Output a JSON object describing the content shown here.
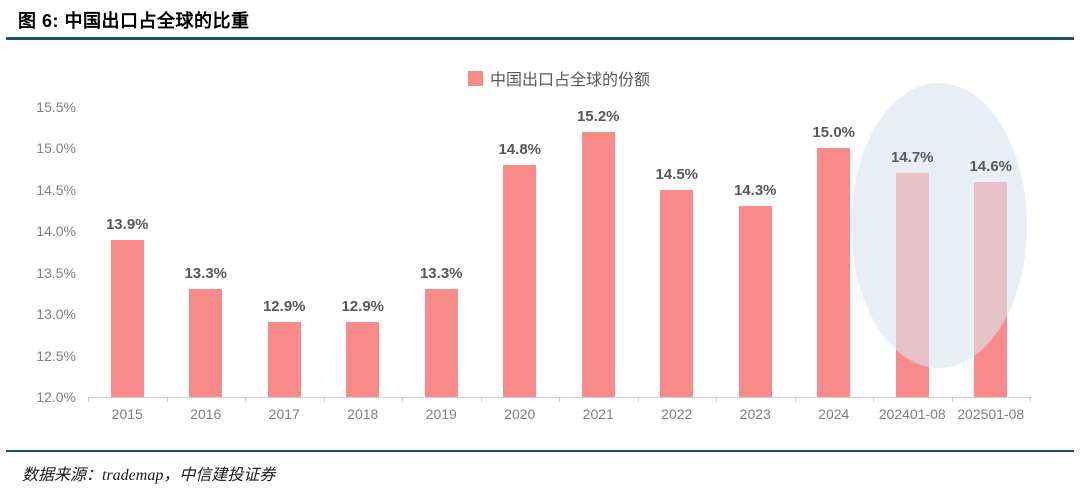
{
  "header": {
    "title": "图 6: 中国出口占全球的比重"
  },
  "footer": {
    "source": "数据来源：trademap，中信建投证券"
  },
  "chart_data": {
    "type": "bar",
    "title": "",
    "legend": [
      "中国出口占全球的份额"
    ],
    "legend_position": "top-center",
    "categories": [
      "2015",
      "2016",
      "2017",
      "2018",
      "2019",
      "2020",
      "2021",
      "2022",
      "2023",
      "2024",
      "202401-08",
      "202501-08"
    ],
    "values": [
      13.9,
      13.3,
      12.9,
      12.9,
      13.3,
      14.8,
      15.2,
      14.5,
      14.3,
      15.0,
      14.7,
      14.6
    ],
    "data_labels": [
      "13.9%",
      "13.3%",
      "12.9%",
      "12.9%",
      "13.3%",
      "14.8%",
      "15.2%",
      "14.5%",
      "14.3%",
      "15.0%",
      "14.7%",
      "14.6%"
    ],
    "xlabel": "",
    "ylabel": "",
    "ylim": [
      12.0,
      15.5
    ],
    "ytick_step": 0.5,
    "ytick_labels": [
      "12.0%",
      "12.5%",
      "13.0%",
      "13.5%",
      "14.0%",
      "14.5%",
      "15.0%",
      "15.5%"
    ],
    "grid": false,
    "bar_color": "#F98A8A",
    "data_label_color": "#595959",
    "axis_label_color": "#808080",
    "axis_line_color": "#D2D2D2",
    "accent_rule_color": "#1F4E79",
    "highlight": {
      "type": "ellipse",
      "over_categories": [
        "202401-08",
        "202501-08"
      ],
      "color": "rgba(219,228,241,0.62)"
    }
  }
}
